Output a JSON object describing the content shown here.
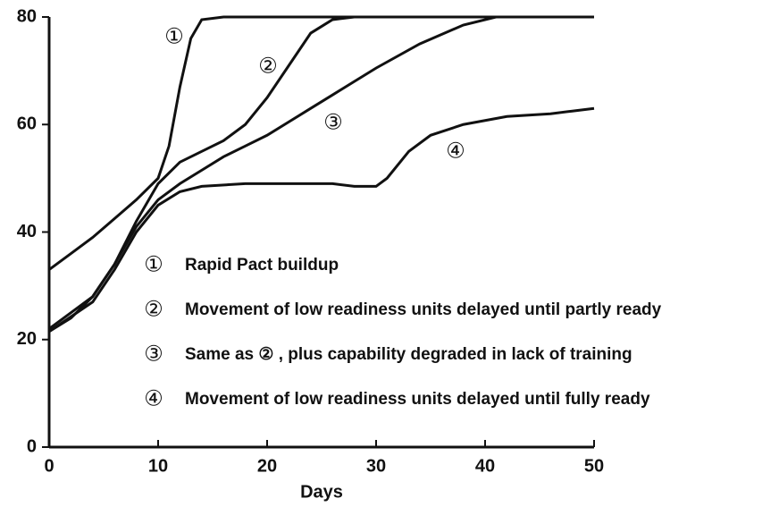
{
  "chart_data": {
    "type": "line",
    "xlabel": "Days",
    "xlim": [
      0,
      50
    ],
    "xticks": [
      0,
      10,
      20,
      30,
      40,
      50
    ],
    "ylim": [
      0,
      80
    ],
    "yticks": [
      0,
      20,
      40,
      60,
      80
    ],
    "color": "#111111",
    "series": [
      {
        "label": "①",
        "name": "Rapid Pact buildup",
        "x": [
          0,
          2,
          4,
          6,
          8,
          10,
          11,
          12,
          13,
          14,
          16,
          20,
          30,
          40,
          50
        ],
        "values": [
          33,
          36,
          39,
          42.5,
          46,
          50,
          56,
          67,
          76,
          79.5,
          80,
          80,
          80,
          80,
          80
        ]
      },
      {
        "label": "②",
        "name": "Movement of low readiness units delayed until partly ready",
        "x": [
          0,
          2,
          4,
          6,
          8,
          10,
          12,
          14,
          16,
          18,
          20,
          22,
          24,
          26,
          28,
          50
        ],
        "values": [
          22,
          25,
          28,
          34,
          42,
          49,
          53,
          55,
          57,
          60,
          65,
          71,
          77,
          79.5,
          80,
          80
        ]
      },
      {
        "label": "③",
        "name": "Same as ② , plus capability degraded in lack of training",
        "x": [
          0,
          2,
          4,
          6,
          8,
          10,
          12,
          14,
          16,
          18,
          20,
          22,
          24,
          26,
          28,
          30,
          34,
          38,
          41,
          50
        ],
        "values": [
          21.5,
          24,
          28,
          34,
          41,
          46,
          49,
          51.5,
          54,
          56,
          58,
          60.5,
          63,
          65.5,
          68,
          70.5,
          75,
          78.5,
          80,
          80
        ]
      },
      {
        "label": "④",
        "name": "Movement of low readiness units delayed until fully ready",
        "x": [
          0,
          4,
          6,
          8,
          10,
          12,
          14,
          18,
          22,
          26,
          28,
          30,
          31,
          33,
          35,
          38,
          42,
          46,
          48,
          50
        ],
        "values": [
          21.5,
          27,
          33,
          40,
          45,
          47.5,
          48.5,
          49,
          49,
          49,
          48.5,
          48.5,
          50,
          55,
          58,
          60,
          61.5,
          62,
          62.5,
          63
        ]
      }
    ]
  }
}
